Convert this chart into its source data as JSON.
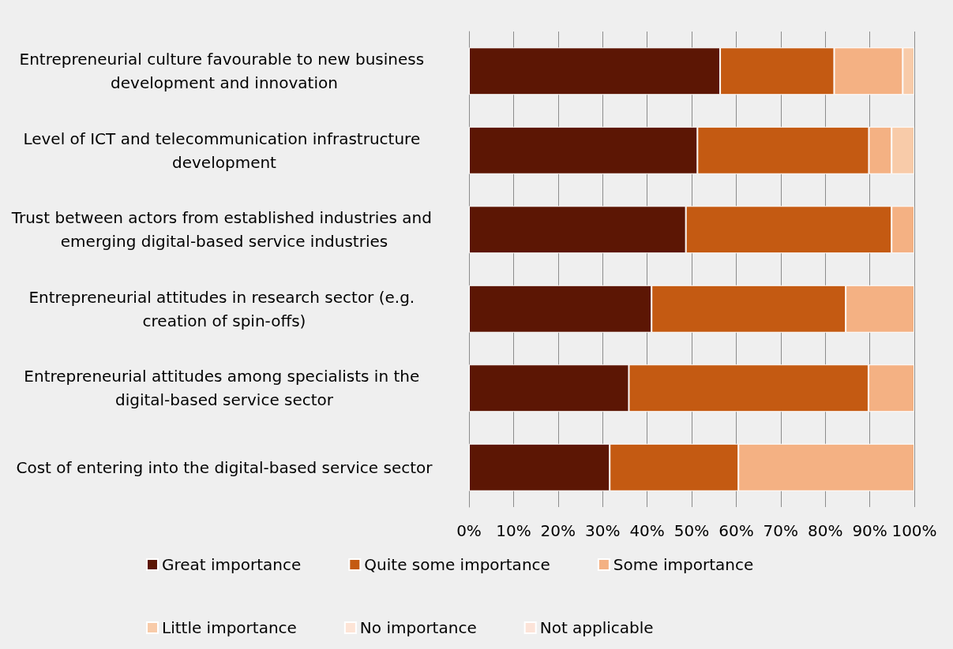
{
  "chart_data": {
    "type": "bar",
    "orientation": "horizontal",
    "stacked": true,
    "categories": [
      "Entrepreneurial culture favourable to new business development and innovation",
      "Level of ICT and telecommunication infrastructure development",
      "Trust between actors from established industries and emerging digital-based service industries",
      "Entrepreneurial attitudes in research sector (e.g. creation of spin-offs)",
      "Entrepreneurial attitudes among specialists in the digital-based service sector",
      "Cost of entering into the digital-based service sector"
    ],
    "series": [
      {
        "name": "Great importance",
        "color": "#5c1604",
        "values": [
          56.4,
          51.3,
          48.7,
          41.0,
          35.9,
          31.6
        ]
      },
      {
        "name": "Quite some importance",
        "color": "#c45a12",
        "values": [
          25.6,
          38.5,
          46.2,
          43.6,
          53.8,
          28.9
        ]
      },
      {
        "name": "Some importance",
        "color": "#f4b183",
        "values": [
          15.4,
          5.1,
          5.1,
          15.4,
          10.3,
          39.5
        ]
      },
      {
        "name": "Little importance",
        "color": "#f8cba9",
        "values": [
          2.6,
          5.1,
          null,
          null,
          null,
          null
        ]
      },
      {
        "name": "No importance",
        "color": "#fde4d6",
        "values": [
          null,
          null,
          null,
          null,
          null,
          null
        ]
      },
      {
        "name": "Not applicable",
        "color": "#fce3d8",
        "values": [
          null,
          null,
          null,
          null,
          null,
          null
        ]
      }
    ],
    "xlim": [
      0,
      100
    ],
    "xticks": [
      {
        "value": 0,
        "label": "0%"
      },
      {
        "value": 10,
        "label": "10%"
      },
      {
        "value": 20,
        "label": "20%"
      },
      {
        "value": 30,
        "label": "30%"
      },
      {
        "value": 40,
        "label": "40%"
      },
      {
        "value": 50,
        "label": "50%"
      },
      {
        "value": 60,
        "label": "60%"
      },
      {
        "value": 70,
        "label": "70%"
      },
      {
        "value": 80,
        "label": "80%"
      },
      {
        "value": 90,
        "label": "90%"
      },
      {
        "value": 100,
        "label": "100%"
      }
    ],
    "grid": "x",
    "legend": "bottom"
  }
}
